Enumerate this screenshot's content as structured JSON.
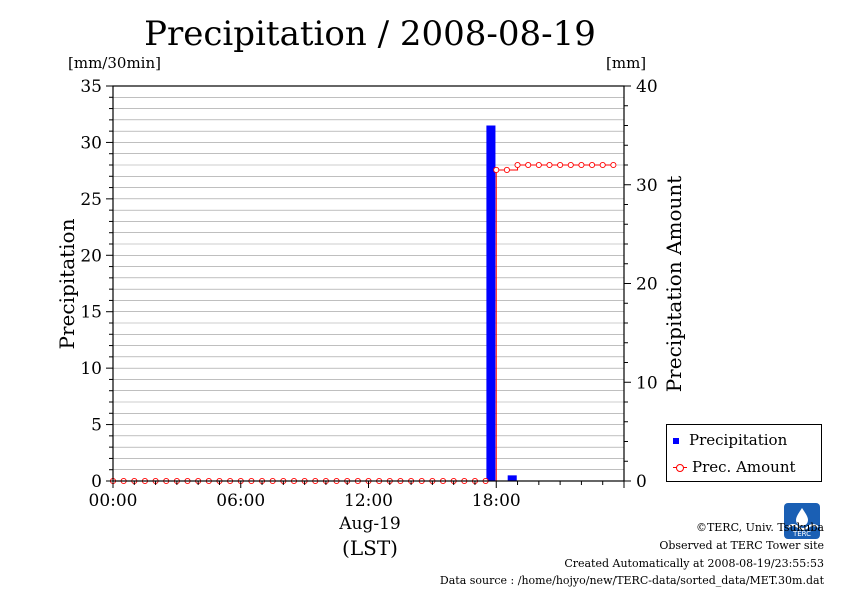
{
  "chart_data": {
    "type": "bar",
    "title": "Precipitation / 2008-08-19",
    "xlabel": "(LST)",
    "date_label": "Aug-19",
    "ylabel_left": "Precipitation",
    "ylabel_right": "Precipitation Amount",
    "unit_left": "[mm/30min]",
    "unit_right": "[mm]",
    "x_ticks": [
      "00:00",
      "06:00",
      "12:00",
      "18:00"
    ],
    "y_left_ticks": [
      "0",
      "5",
      "10",
      "15",
      "20",
      "25",
      "30",
      "35"
    ],
    "y_right_ticks": [
      "0",
      "10",
      "20",
      "30",
      "40"
    ],
    "ylim_left": [
      0,
      35
    ],
    "ylim_right": [
      0,
      40
    ],
    "xlim_hours": [
      0,
      24
    ],
    "grid": "horizontal",
    "legend_position": "bottom-right",
    "colors": {
      "precipitation": "#0000ff",
      "amount": "#ff0000",
      "grid": "#999999"
    },
    "series": [
      {
        "name": "Precipitation",
        "type": "bar",
        "axis": "left",
        "x_hours": [
          0.5,
          1,
          1.5,
          2,
          2.5,
          3,
          3.5,
          4,
          4.5,
          5,
          5.5,
          6,
          6.5,
          7,
          7.5,
          8,
          8.5,
          9,
          9.5,
          10,
          10.5,
          11,
          11.5,
          12,
          12.5,
          13,
          13.5,
          14,
          14.5,
          15,
          15.5,
          16,
          16.5,
          17,
          17.5,
          18,
          18.5,
          19,
          19.5,
          20,
          20.5,
          21,
          21.5,
          22,
          22.5,
          23,
          23.5
        ],
        "values": [
          0,
          0,
          0,
          0,
          0,
          0,
          0,
          0,
          0,
          0,
          0,
          0,
          0,
          0,
          0,
          0,
          0,
          0,
          0,
          0,
          0,
          0,
          0,
          0,
          0,
          0,
          0,
          0,
          0,
          0,
          0,
          0,
          0,
          0,
          0,
          31.5,
          0,
          0.5,
          0,
          0,
          0,
          0,
          0,
          0,
          0,
          0,
          0
        ]
      },
      {
        "name": "Prec. Amount",
        "type": "line",
        "axis": "right",
        "x_hours": [
          0,
          0.5,
          1,
          1.5,
          2,
          2.5,
          3,
          3.5,
          4,
          4.5,
          5,
          5.5,
          6,
          6.5,
          7,
          7.5,
          8,
          8.5,
          9,
          9.5,
          10,
          10.5,
          11,
          11.5,
          12,
          12.5,
          13,
          13.5,
          14,
          14.5,
          15,
          15.5,
          16,
          16.5,
          17,
          17.5,
          18,
          18.5,
          19,
          19.5,
          20,
          20.5,
          21,
          21.5,
          22,
          22.5,
          23,
          23.5
        ],
        "values": [
          0,
          0,
          0,
          0,
          0,
          0,
          0,
          0,
          0,
          0,
          0,
          0,
          0,
          0,
          0,
          0,
          0,
          0,
          0,
          0,
          0,
          0,
          0,
          0,
          0,
          0,
          0,
          0,
          0,
          0,
          0,
          0,
          0,
          0,
          0,
          0,
          31.5,
          31.5,
          32,
          32,
          32,
          32,
          32,
          32,
          32,
          32,
          32,
          32
        ]
      }
    ]
  },
  "footer": {
    "copyright": "©TERC, Univ. Tsukuba",
    "observed": "Observed at TERC Tower site",
    "created": "Created Automatically at 2008-08-19/23:55:53",
    "source": "Data source : /home/hojyo/new/TERC-data/sorted_data/MET.30m.dat",
    "logo_text": "TERC"
  }
}
